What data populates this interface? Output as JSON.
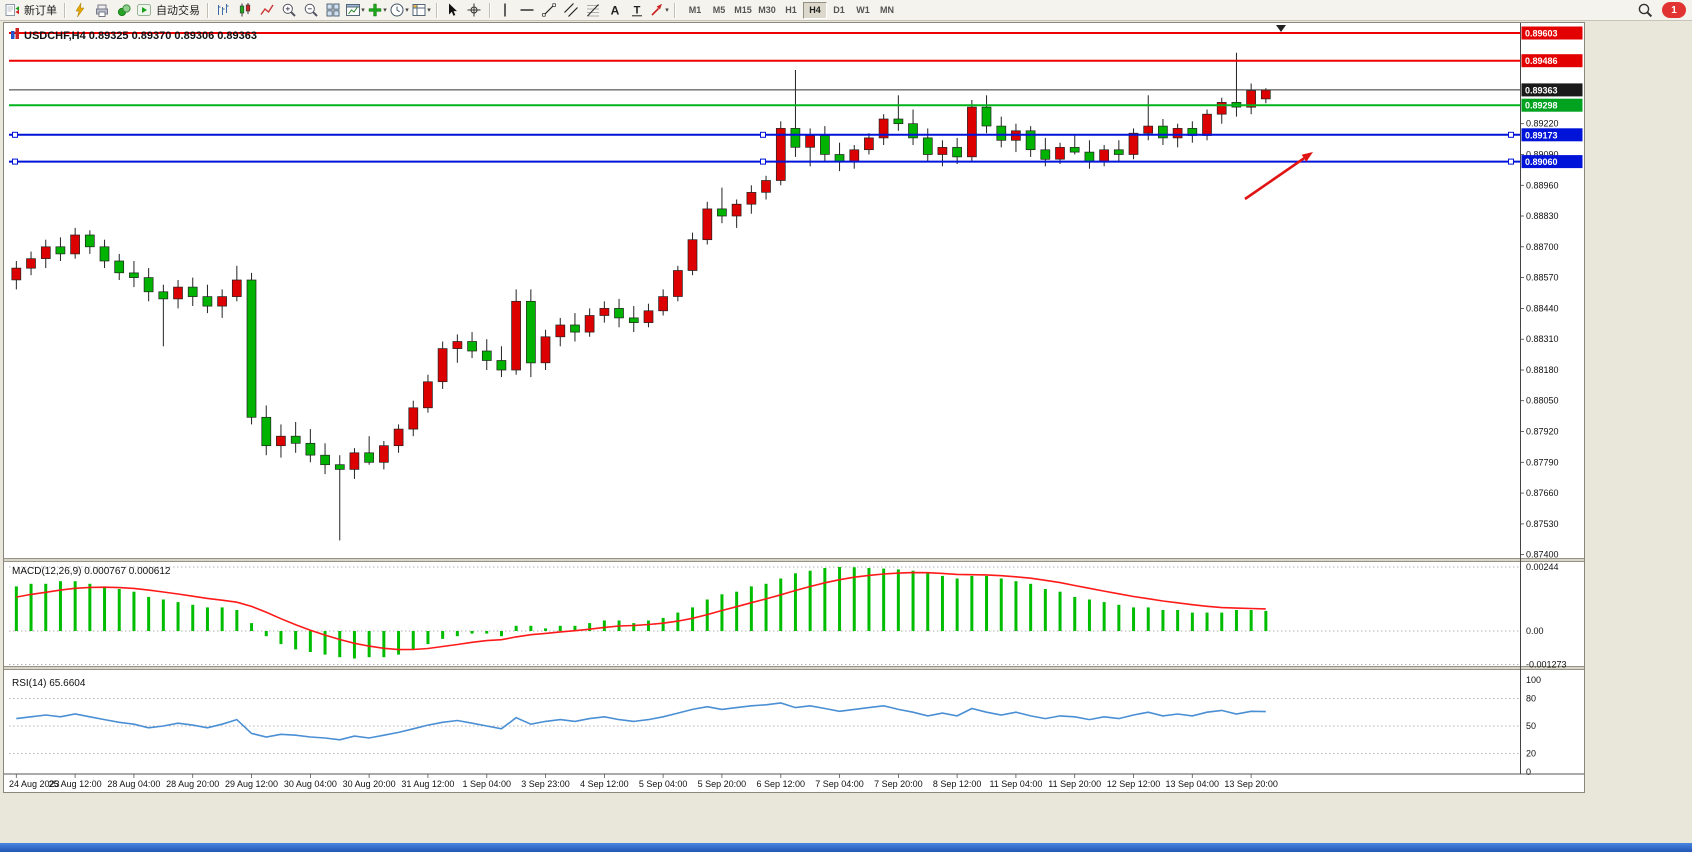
{
  "toolbar": {
    "items": [
      {
        "name": "new-order-button",
        "icon": "new-order-icon",
        "label": "新订单"
      },
      {
        "sep": true
      },
      {
        "name": "metaeditor-button",
        "icon": "metaeditor-icon"
      },
      {
        "name": "print-button",
        "icon": "print-icon"
      },
      {
        "name": "profiles-button",
        "icon": "profiles-icon"
      },
      {
        "name": "auto-trading-button",
        "icon": "auto-trading-icon",
        "label": "自动交易"
      },
      {
        "sep": true
      },
      {
        "name": "bar-chart-mode-button",
        "icon": "bar-chart-icon"
      },
      {
        "name": "candlestick-mode-button",
        "icon": "candlestick-chart-icon"
      },
      {
        "name": "line-chart-mode-button",
        "icon": "line-chart-icon"
      },
      {
        "name": "zoom-in-button",
        "icon": "zoom-in-icon"
      },
      {
        "name": "zoom-out-button",
        "icon": "zoom-out-icon"
      },
      {
        "name": "tile-windows-button",
        "icon": "tile-windows-icon"
      },
      {
        "name": "new-chart-button",
        "icon": "new-chart-icon",
        "dropdown": true
      },
      {
        "name": "indicators-button",
        "icon": "indicators-icon",
        "dropdown": true
      },
      {
        "name": "periods-button",
        "icon": "periods-icon",
        "dropdown": true
      },
      {
        "name": "templates-button",
        "icon": "templates-icon",
        "dropdown": true
      },
      {
        "sep": true
      },
      {
        "name": "cursor-tool-button",
        "icon": "cursor-icon"
      },
      {
        "name": "crosshair-tool-button",
        "icon": "crosshair-icon"
      },
      {
        "sep": true
      },
      {
        "name": "vertical-line-tool-button",
        "icon": "vertical-line-icon"
      },
      {
        "name": "horizontal-line-tool-button",
        "icon": "horizontal-line-icon"
      },
      {
        "name": "trendline-tool-button",
        "icon": "trendline-icon"
      },
      {
        "name": "channel-tool-button",
        "icon": "channel-icon"
      },
      {
        "name": "fibonacci-tool-button",
        "icon": "fibonacci-icon"
      },
      {
        "name": "text-tool-button",
        "icon": "text-icon"
      },
      {
        "name": "text-label-tool-button",
        "icon": "text-label-icon"
      },
      {
        "name": "arrows-tool-button",
        "icon": "arrows-icon",
        "dropdown": true
      },
      {
        "sep": true
      }
    ],
    "timeframes": [
      "M1",
      "M5",
      "M15",
      "M30",
      "H1",
      "H4",
      "D1",
      "W1",
      "MN"
    ],
    "active_timeframe": "H4",
    "notification_count": "1"
  },
  "chart_data": [
    {
      "type": "candlestick",
      "symbol": "USDCHF",
      "timeframe": "H4",
      "title": "USDCHF,H4  0.89325 0.89370 0.89306 0.89363",
      "ohlc_current": {
        "open": "0.89325",
        "high": "0.89370",
        "low": "0.89306",
        "close": "0.89363"
      },
      "bull_color": "#dd0000",
      "bear_color": "#00b300",
      "wick_color": "#222222",
      "ylim": [
        0.8739,
        0.8962
      ],
      "y_axis_ticks": [
        "0.89220",
        "0.89090",
        "0.88960",
        "0.88830",
        "0.88700",
        "0.88570",
        "0.88440",
        "0.88310",
        "0.88180",
        "0.88050",
        "0.87920",
        "0.87790",
        "0.87660",
        "0.87530",
        "0.87400"
      ],
      "price_badges": [
        {
          "price": 0.89603,
          "label": "0.89603",
          "color": "#e20000"
        },
        {
          "price": 0.89486,
          "label": "0.89486",
          "color": "#e20000"
        },
        {
          "price": 0.89363,
          "label": "0.89363",
          "color": "#1a1a1a"
        },
        {
          "price": 0.89298,
          "label": "0.89298",
          "color": "#00a21f"
        },
        {
          "price": 0.89173,
          "label": "0.89173",
          "color": "#0013d9"
        },
        {
          "price": 0.8906,
          "label": "0.89060",
          "color": "#0013d9"
        }
      ],
      "hlines": [
        {
          "price": 0.89603,
          "color": "#ee0000",
          "width": 2,
          "handles": false
        },
        {
          "price": 0.89486,
          "color": "#ee0000",
          "width": 2,
          "handles": false
        },
        {
          "price": 0.89298,
          "color": "#00b41f",
          "width": 2,
          "handles": false
        },
        {
          "price": 0.89173,
          "color": "#0013d9",
          "width": 2,
          "handles": true
        },
        {
          "price": 0.8906,
          "color": "#0013d9",
          "width": 2,
          "handles": true
        }
      ],
      "bid_line": {
        "price": 0.89363,
        "color": "#333333"
      },
      "annotation_arrow": {
        "from": [
          1241,
          176
        ],
        "to": [
          1309,
          129
        ],
        "color": "#e01414"
      },
      "x_labels": [
        "24 Aug 2023",
        "25 Aug 12:00",
        "28 Aug 04:00",
        "28 Aug 20:00",
        "29 Aug 12:00",
        "30 Aug 04:00",
        "30 Aug 20:00",
        "31 Aug 12:00",
        "1 Sep 04:00",
        "3 Sep 23:00",
        "4 Sep 12:00",
        "5 Sep 04:00",
        "5 Sep 20:00",
        "6 Sep 12:00",
        "7 Sep 04:00",
        "7 Sep 20:00",
        "8 Sep 12:00",
        "11 Sep 04:00",
        "11 Sep 20:00",
        "12 Sep 12:00",
        "13 Sep 04:00",
        "13 Sep 20:00"
      ],
      "candles": [
        [
          0.8856,
          0.8864,
          0.8852,
          0.8861
        ],
        [
          0.8861,
          0.8868,
          0.8858,
          0.8865
        ],
        [
          0.8865,
          0.8873,
          0.8861,
          0.887
        ],
        [
          0.887,
          0.8874,
          0.8864,
          0.8867
        ],
        [
          0.8867,
          0.8878,
          0.8865,
          0.8875
        ],
        [
          0.8875,
          0.8877,
          0.8867,
          0.887
        ],
        [
          0.887,
          0.8873,
          0.8861,
          0.8864
        ],
        [
          0.8864,
          0.8867,
          0.8856,
          0.8859
        ],
        [
          0.8859,
          0.8864,
          0.8853,
          0.8857
        ],
        [
          0.8857,
          0.8861,
          0.8847,
          0.8851
        ],
        [
          0.8851,
          0.8854,
          0.8828,
          0.8848
        ],
        [
          0.8848,
          0.8856,
          0.8844,
          0.8853
        ],
        [
          0.8853,
          0.8857,
          0.8845,
          0.8849
        ],
        [
          0.8849,
          0.8854,
          0.8842,
          0.8845
        ],
        [
          0.8845,
          0.8852,
          0.884,
          0.8849
        ],
        [
          0.8849,
          0.8862,
          0.8847,
          0.8856
        ],
        [
          0.8856,
          0.8859,
          0.8795,
          0.8798
        ],
        [
          0.8798,
          0.8803,
          0.8782,
          0.8786
        ],
        [
          0.8786,
          0.8795,
          0.8781,
          0.879
        ],
        [
          0.879,
          0.8796,
          0.8783,
          0.8787
        ],
        [
          0.8787,
          0.8793,
          0.8779,
          0.8782
        ],
        [
          0.8782,
          0.8787,
          0.8774,
          0.8778
        ],
        [
          0.8778,
          0.8782,
          0.8746,
          0.8776
        ],
        [
          0.8776,
          0.8785,
          0.8772,
          0.8783
        ],
        [
          0.8783,
          0.879,
          0.8778,
          0.8779
        ],
        [
          0.8779,
          0.8788,
          0.8776,
          0.8786
        ],
        [
          0.8786,
          0.8795,
          0.8783,
          0.8793
        ],
        [
          0.8793,
          0.8805,
          0.879,
          0.8802
        ],
        [
          0.8802,
          0.8816,
          0.88,
          0.8813
        ],
        [
          0.8813,
          0.883,
          0.881,
          0.8827
        ],
        [
          0.8827,
          0.8833,
          0.8821,
          0.883
        ],
        [
          0.883,
          0.8834,
          0.8823,
          0.8826
        ],
        [
          0.8826,
          0.8831,
          0.8818,
          0.8822
        ],
        [
          0.8822,
          0.8828,
          0.8815,
          0.8818
        ],
        [
          0.8818,
          0.8852,
          0.8816,
          0.8847
        ],
        [
          0.8847,
          0.8852,
          0.8815,
          0.8821
        ],
        [
          0.8821,
          0.8835,
          0.8818,
          0.8832
        ],
        [
          0.8832,
          0.884,
          0.8828,
          0.8837
        ],
        [
          0.8837,
          0.8842,
          0.883,
          0.8834
        ],
        [
          0.8834,
          0.8844,
          0.8832,
          0.8841
        ],
        [
          0.8841,
          0.8847,
          0.8838,
          0.8844
        ],
        [
          0.8844,
          0.8848,
          0.8836,
          0.884
        ],
        [
          0.884,
          0.8845,
          0.8834,
          0.8838
        ],
        [
          0.8838,
          0.8846,
          0.8836,
          0.8843
        ],
        [
          0.8843,
          0.8852,
          0.8841,
          0.8849
        ],
        [
          0.8849,
          0.8862,
          0.8847,
          0.886
        ],
        [
          0.886,
          0.8876,
          0.8858,
          0.8873
        ],
        [
          0.8873,
          0.8889,
          0.8871,
          0.8886
        ],
        [
          0.8886,
          0.8895,
          0.888,
          0.8883
        ],
        [
          0.8883,
          0.889,
          0.8878,
          0.8888
        ],
        [
          0.8888,
          0.8896,
          0.8884,
          0.8893
        ],
        [
          0.8893,
          0.89,
          0.889,
          0.8898
        ],
        [
          0.8898,
          0.8923,
          0.8896,
          0.892
        ],
        [
          0.892,
          0.89447,
          0.8908,
          0.8912
        ],
        [
          0.8912,
          0.892,
          0.8904,
          0.8917
        ],
        [
          0.8917,
          0.8921,
          0.8906,
          0.8909
        ],
        [
          0.8909,
          0.8914,
          0.8902,
          0.8906
        ],
        [
          0.8906,
          0.8913,
          0.8903,
          0.8911
        ],
        [
          0.8911,
          0.8918,
          0.8909,
          0.8916
        ],
        [
          0.8916,
          0.8926,
          0.8913,
          0.8924
        ],
        [
          0.8924,
          0.8934,
          0.8919,
          0.8922
        ],
        [
          0.8922,
          0.8928,
          0.8913,
          0.8916
        ],
        [
          0.8916,
          0.892,
          0.8906,
          0.8909
        ],
        [
          0.8909,
          0.8915,
          0.8904,
          0.8912
        ],
        [
          0.8912,
          0.8916,
          0.8905,
          0.8908
        ],
        [
          0.8908,
          0.8932,
          0.8906,
          0.8929
        ],
        [
          0.8929,
          0.8934,
          0.8918,
          0.8921
        ],
        [
          0.8921,
          0.8925,
          0.8912,
          0.8915
        ],
        [
          0.8915,
          0.8922,
          0.891,
          0.8919
        ],
        [
          0.8919,
          0.8921,
          0.8908,
          0.8911
        ],
        [
          0.8911,
          0.8916,
          0.8904,
          0.8907
        ],
        [
          0.8907,
          0.8914,
          0.8905,
          0.8912
        ],
        [
          0.8912,
          0.8917,
          0.8909,
          0.891
        ],
        [
          0.891,
          0.8915,
          0.8903,
          0.8906
        ],
        [
          0.8906,
          0.8913,
          0.8904,
          0.8911
        ],
        [
          0.8911,
          0.8915,
          0.8906,
          0.8909
        ],
        [
          0.8909,
          0.892,
          0.8907,
          0.8918
        ],
        [
          0.8918,
          0.8934,
          0.8915,
          0.8921
        ],
        [
          0.8921,
          0.8924,
          0.8913,
          0.8916
        ],
        [
          0.8916,
          0.8922,
          0.8912,
          0.892
        ],
        [
          0.892,
          0.8923,
          0.8914,
          0.8917
        ],
        [
          0.8917,
          0.8928,
          0.8915,
          0.8926
        ],
        [
          0.8926,
          0.8933,
          0.8922,
          0.8931
        ],
        [
          0.8931,
          0.8952,
          0.8925,
          0.8929
        ],
        [
          0.8929,
          0.8939,
          0.8926,
          0.8936
        ],
        [
          0.89325,
          0.8937,
          0.89306,
          0.89363
        ]
      ]
    },
    {
      "type": "bar",
      "name": "MACD(12,26,9)",
      "label": "MACD(12,26,9) 0.000767 0.000612",
      "current_main": "0.000767",
      "current_signal": "0.000612",
      "bar_color": "#00bd00",
      "signal_color": "#ff1a1a",
      "signal_period": 9,
      "y_ticks": [
        {
          "value": 0.00244,
          "label": "0.00244"
        },
        {
          "value": 0,
          "label": "0.00"
        },
        {
          "value": -0.001273,
          "label": "-0.001273"
        }
      ],
      "values": [
        0.0017,
        0.0018,
        0.0018,
        0.0019,
        0.0019,
        0.0018,
        0.0017,
        0.0016,
        0.0015,
        0.0013,
        0.0012,
        0.0011,
        0.001,
        0.0009,
        0.0009,
        0.0008,
        0.0003,
        -0.0002,
        -0.0005,
        -0.0007,
        -0.0008,
        -0.0009,
        -0.001,
        -0.00105,
        -0.001,
        -0.001,
        -0.0009,
        -0.0007,
        -0.0005,
        -0.0003,
        -0.0002,
        -0.0001,
        -0.0001,
        -0.0002,
        0.0002,
        0.0002,
        0.0001,
        0.0002,
        0.0002,
        0.0003,
        0.0004,
        0.0004,
        0.0003,
        0.0004,
        0.0005,
        0.0007,
        0.0009,
        0.0012,
        0.0014,
        0.0015,
        0.0017,
        0.0018,
        0.002,
        0.0022,
        0.0023,
        0.0024,
        0.00244,
        0.00243,
        0.0024,
        0.00238,
        0.00235,
        0.0023,
        0.0022,
        0.0021,
        0.002,
        0.0021,
        0.0021,
        0.002,
        0.0019,
        0.0018,
        0.0016,
        0.0015,
        0.0013,
        0.0012,
        0.0011,
        0.001,
        0.0009,
        0.0009,
        0.0008,
        0.0008,
        0.0007,
        0.0007,
        0.0007,
        0.0008,
        0.0008,
        0.000767
      ]
    },
    {
      "type": "line",
      "name": "RSI(14)",
      "label": "RSI(14) 65.6604",
      "current": "65.6604",
      "line_color": "#4a8fd4",
      "ylim": [
        0,
        100
      ],
      "levels": [
        80,
        50,
        20
      ],
      "y_ticks": [
        {
          "value": 100,
          "label": "100"
        },
        {
          "value": 80,
          "label": "80"
        },
        {
          "value": 50,
          "label": "50"
        },
        {
          "value": 20,
          "label": "20"
        },
        {
          "value": 0,
          "label": "0"
        }
      ],
      "values": [
        58,
        60,
        62,
        60,
        63,
        60,
        57,
        54,
        52,
        48,
        50,
        53,
        51,
        48,
        52,
        57,
        42,
        38,
        41,
        40,
        38,
        37,
        35,
        39,
        37,
        40,
        43,
        47,
        51,
        54,
        56,
        53,
        50,
        47,
        59,
        52,
        55,
        57,
        55,
        58,
        60,
        57,
        55,
        57,
        60,
        64,
        68,
        71,
        68,
        70,
        72,
        73,
        75,
        70,
        72,
        69,
        66,
        68,
        70,
        72,
        68,
        65,
        61,
        64,
        61,
        69,
        65,
        62,
        65,
        61,
        58,
        61,
        60,
        57,
        60,
        58,
        62,
        65,
        61,
        63,
        61,
        65,
        67,
        63,
        66,
        65.6604
      ]
    }
  ]
}
